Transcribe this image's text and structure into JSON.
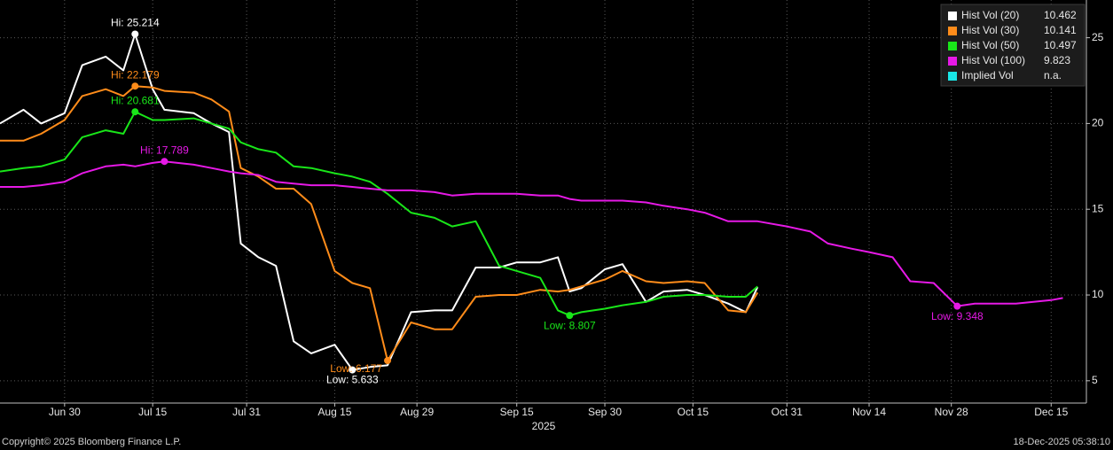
{
  "chart_data": {
    "type": "line",
    "x": [
      "2025-06-19",
      "2025-06-23",
      "2025-06-26",
      "2025-06-30",
      "2025-07-03",
      "2025-07-07",
      "2025-07-10",
      "2025-07-12",
      "2025-07-15",
      "2025-07-17",
      "2025-07-22",
      "2025-07-25",
      "2025-07-28",
      "2025-07-30",
      "2025-08-02",
      "2025-08-05",
      "2025-08-08",
      "2025-08-11",
      "2025-08-15",
      "2025-08-18",
      "2025-08-21",
      "2025-08-24",
      "2025-08-28",
      "2025-09-01",
      "2025-09-04",
      "2025-09-08",
      "2025-09-12",
      "2025-09-15",
      "2025-09-19",
      "2025-09-22",
      "2025-09-24",
      "2025-09-26",
      "2025-09-30",
      "2025-10-03",
      "2025-10-07",
      "2025-10-10",
      "2025-10-14",
      "2025-10-17",
      "2025-10-21",
      "2025-10-24",
      "2025-10-26",
      "2025-10-31",
      "2025-11-04",
      "2025-11-07",
      "2025-11-11",
      "2025-11-14",
      "2025-11-18",
      "2025-11-21",
      "2025-11-25",
      "2025-11-29",
      "2025-12-02",
      "2025-12-05",
      "2025-12-09",
      "2025-12-12",
      "2025-12-15",
      "2025-12-17"
    ],
    "series": [
      {
        "name": "Hist Vol (20)",
        "color": "#ffffff",
        "values": [
          20.0,
          20.8,
          20.0,
          20.6,
          23.4,
          23.9,
          23.1,
          25.214,
          22.0,
          20.8,
          20.6,
          20.0,
          19.5,
          13.0,
          12.2,
          11.7,
          7.3,
          6.6,
          7.1,
          5.633,
          5.8,
          5.9,
          9.0,
          9.1,
          9.1,
          11.6,
          11.6,
          11.9,
          11.9,
          12.2,
          10.2,
          10.4,
          11.5,
          11.8,
          9.6,
          10.2,
          10.3,
          10.0,
          9.5,
          9.0,
          10.462,
          null,
          null,
          null,
          null,
          null,
          null,
          null,
          null,
          null,
          null,
          null,
          null,
          null,
          null,
          null
        ],
        "value_labels": [
          null,
          null,
          null,
          null,
          null,
          null,
          null,
          "Hi: 25.214",
          null,
          null,
          null,
          null,
          null,
          null,
          null,
          null,
          null,
          null,
          null,
          "Low: 5.633",
          null,
          null,
          null,
          null,
          null,
          null,
          null,
          null,
          null,
          null,
          null,
          null,
          null,
          null,
          null,
          null,
          null,
          null,
          null,
          null,
          null,
          null,
          null,
          null,
          null,
          null,
          null,
          null,
          null,
          null,
          null,
          null,
          null,
          null,
          null,
          null
        ]
      },
      {
        "name": "Hist Vol (30)",
        "color": "#ff8c1a",
        "values": [
          19.0,
          19.0,
          19.4,
          20.2,
          21.6,
          22.0,
          21.6,
          22.179,
          22.1,
          21.9,
          21.8,
          21.4,
          20.7,
          17.4,
          16.9,
          16.2,
          16.2,
          15.3,
          11.4,
          10.7,
          10.4,
          6.177,
          8.4,
          8.0,
          8.0,
          9.9,
          10.0,
          10.0,
          10.3,
          10.2,
          10.3,
          10.5,
          10.9,
          11.4,
          10.8,
          10.7,
          10.8,
          10.7,
          9.1,
          9.0,
          10.141,
          null,
          null,
          null,
          null,
          null,
          null,
          null,
          null,
          null,
          null,
          null,
          null,
          null,
          null,
          null
        ],
        "value_labels": [
          null,
          null,
          null,
          null,
          null,
          null,
          null,
          "Hi: 22.179",
          null,
          null,
          null,
          null,
          null,
          null,
          null,
          null,
          null,
          null,
          null,
          null,
          null,
          "Low: 6.177",
          null,
          null,
          null,
          null,
          null,
          null,
          null,
          null,
          null,
          null,
          null,
          null,
          null,
          null,
          null,
          null,
          null,
          null,
          null,
          null,
          null,
          null,
          null,
          null,
          null,
          null,
          null,
          null,
          null,
          null,
          null,
          null,
          null,
          null
        ]
      },
      {
        "name": "Hist Vol (50)",
        "color": "#19e619",
        "values": [
          17.2,
          17.4,
          17.5,
          17.9,
          19.2,
          19.6,
          19.4,
          20.681,
          20.2,
          20.2,
          20.3,
          20.0,
          19.7,
          18.9,
          18.5,
          18.3,
          17.5,
          17.4,
          17.1,
          16.9,
          16.6,
          15.9,
          14.8,
          14.5,
          14.0,
          14.3,
          11.7,
          11.4,
          11.0,
          9.1,
          8.807,
          9.0,
          9.2,
          9.4,
          9.6,
          9.9,
          10.0,
          10.0,
          9.9,
          9.9,
          10.497,
          null,
          null,
          null,
          null,
          null,
          null,
          null,
          null,
          null,
          null,
          null,
          null,
          null,
          null,
          null
        ],
        "value_labels": [
          null,
          null,
          null,
          null,
          null,
          null,
          null,
          "Hi: 20.681",
          null,
          null,
          null,
          null,
          null,
          null,
          null,
          null,
          null,
          null,
          null,
          null,
          null,
          null,
          null,
          null,
          null,
          null,
          null,
          null,
          null,
          null,
          "Low: 8.807",
          null,
          null,
          null,
          null,
          null,
          null,
          null,
          null,
          null,
          null,
          null,
          null,
          null,
          null,
          null,
          null,
          null,
          null,
          null,
          null,
          null,
          null,
          null,
          null,
          null
        ]
      },
      {
        "name": "Hist Vol (100)",
        "color": "#e619e6",
        "values": [
          16.3,
          16.3,
          16.4,
          16.6,
          17.1,
          17.5,
          17.6,
          17.5,
          17.7,
          17.789,
          17.6,
          17.4,
          17.2,
          17.1,
          17.0,
          16.6,
          16.5,
          16.4,
          16.4,
          16.3,
          16.2,
          16.1,
          16.1,
          16.0,
          15.8,
          15.9,
          15.9,
          15.9,
          15.8,
          15.8,
          15.6,
          15.5,
          15.5,
          15.5,
          15.4,
          15.2,
          15.0,
          14.8,
          14.3,
          14.3,
          14.3,
          14.0,
          13.7,
          13.0,
          12.7,
          12.5,
          12.2,
          10.8,
          10.7,
          9.348,
          9.5,
          9.5,
          9.5,
          9.6,
          9.7,
          9.823
        ],
        "value_labels": [
          null,
          null,
          null,
          null,
          null,
          null,
          null,
          null,
          null,
          "Hi: 17.789",
          null,
          null,
          null,
          null,
          null,
          null,
          null,
          null,
          null,
          null,
          null,
          null,
          null,
          null,
          null,
          null,
          null,
          null,
          null,
          null,
          null,
          null,
          null,
          null,
          null,
          null,
          null,
          null,
          null,
          null,
          null,
          null,
          null,
          null,
          null,
          null,
          null,
          null,
          null,
          "Low: 9.348",
          null,
          null,
          null,
          null,
          null,
          null
        ]
      },
      {
        "name": "Implied Vol",
        "color": "#19e6e6",
        "legend_value": "n.a.",
        "values": [
          null,
          null,
          null,
          null,
          null,
          null,
          null,
          null,
          null,
          null,
          null,
          null,
          null,
          null,
          null,
          null,
          null,
          null,
          null,
          null,
          null,
          null,
          null,
          null,
          null,
          null,
          null,
          null,
          null,
          null,
          null,
          null,
          null,
          null,
          null,
          null,
          null,
          null,
          null,
          null,
          null,
          null,
          null,
          null,
          null,
          null,
          null,
          null,
          null,
          null,
          null,
          null,
          null,
          null,
          null,
          null
        ]
      }
    ],
    "xlim": [
      "2025-06-19",
      "2025-12-21"
    ],
    "xticks": [
      {
        "value": "2025-06-30",
        "label": "Jun 30"
      },
      {
        "value": "2025-07-15",
        "label": "Jul 15"
      },
      {
        "value": "2025-07-31",
        "label": "Jul 31"
      },
      {
        "value": "2025-08-15",
        "label": "Aug 15"
      },
      {
        "value": "2025-08-29",
        "label": "Aug 29"
      },
      {
        "value": "2025-09-15",
        "label": "Sep 15"
      },
      {
        "value": "2025-09-30",
        "label": "Sep 30"
      },
      {
        "value": "2025-10-15",
        "label": "Oct 15"
      },
      {
        "value": "2025-10-31",
        "label": "Oct 31"
      },
      {
        "value": "2025-11-14",
        "label": "Nov 14"
      },
      {
        "value": "2025-11-28",
        "label": "Nov 28"
      },
      {
        "value": "2025-12-15",
        "label": "Dec 15"
      }
    ],
    "xlabel": "2025",
    "ylim": [
      3.7,
      27.2
    ],
    "yticks": [
      5,
      10,
      15,
      20,
      25
    ],
    "grid": true,
    "legend": "top-right"
  },
  "footer": {
    "copyright": "Copyright© 2025 Bloomberg Finance L.P.",
    "timestamp": "18-Dec-2025 05:38:10"
  }
}
